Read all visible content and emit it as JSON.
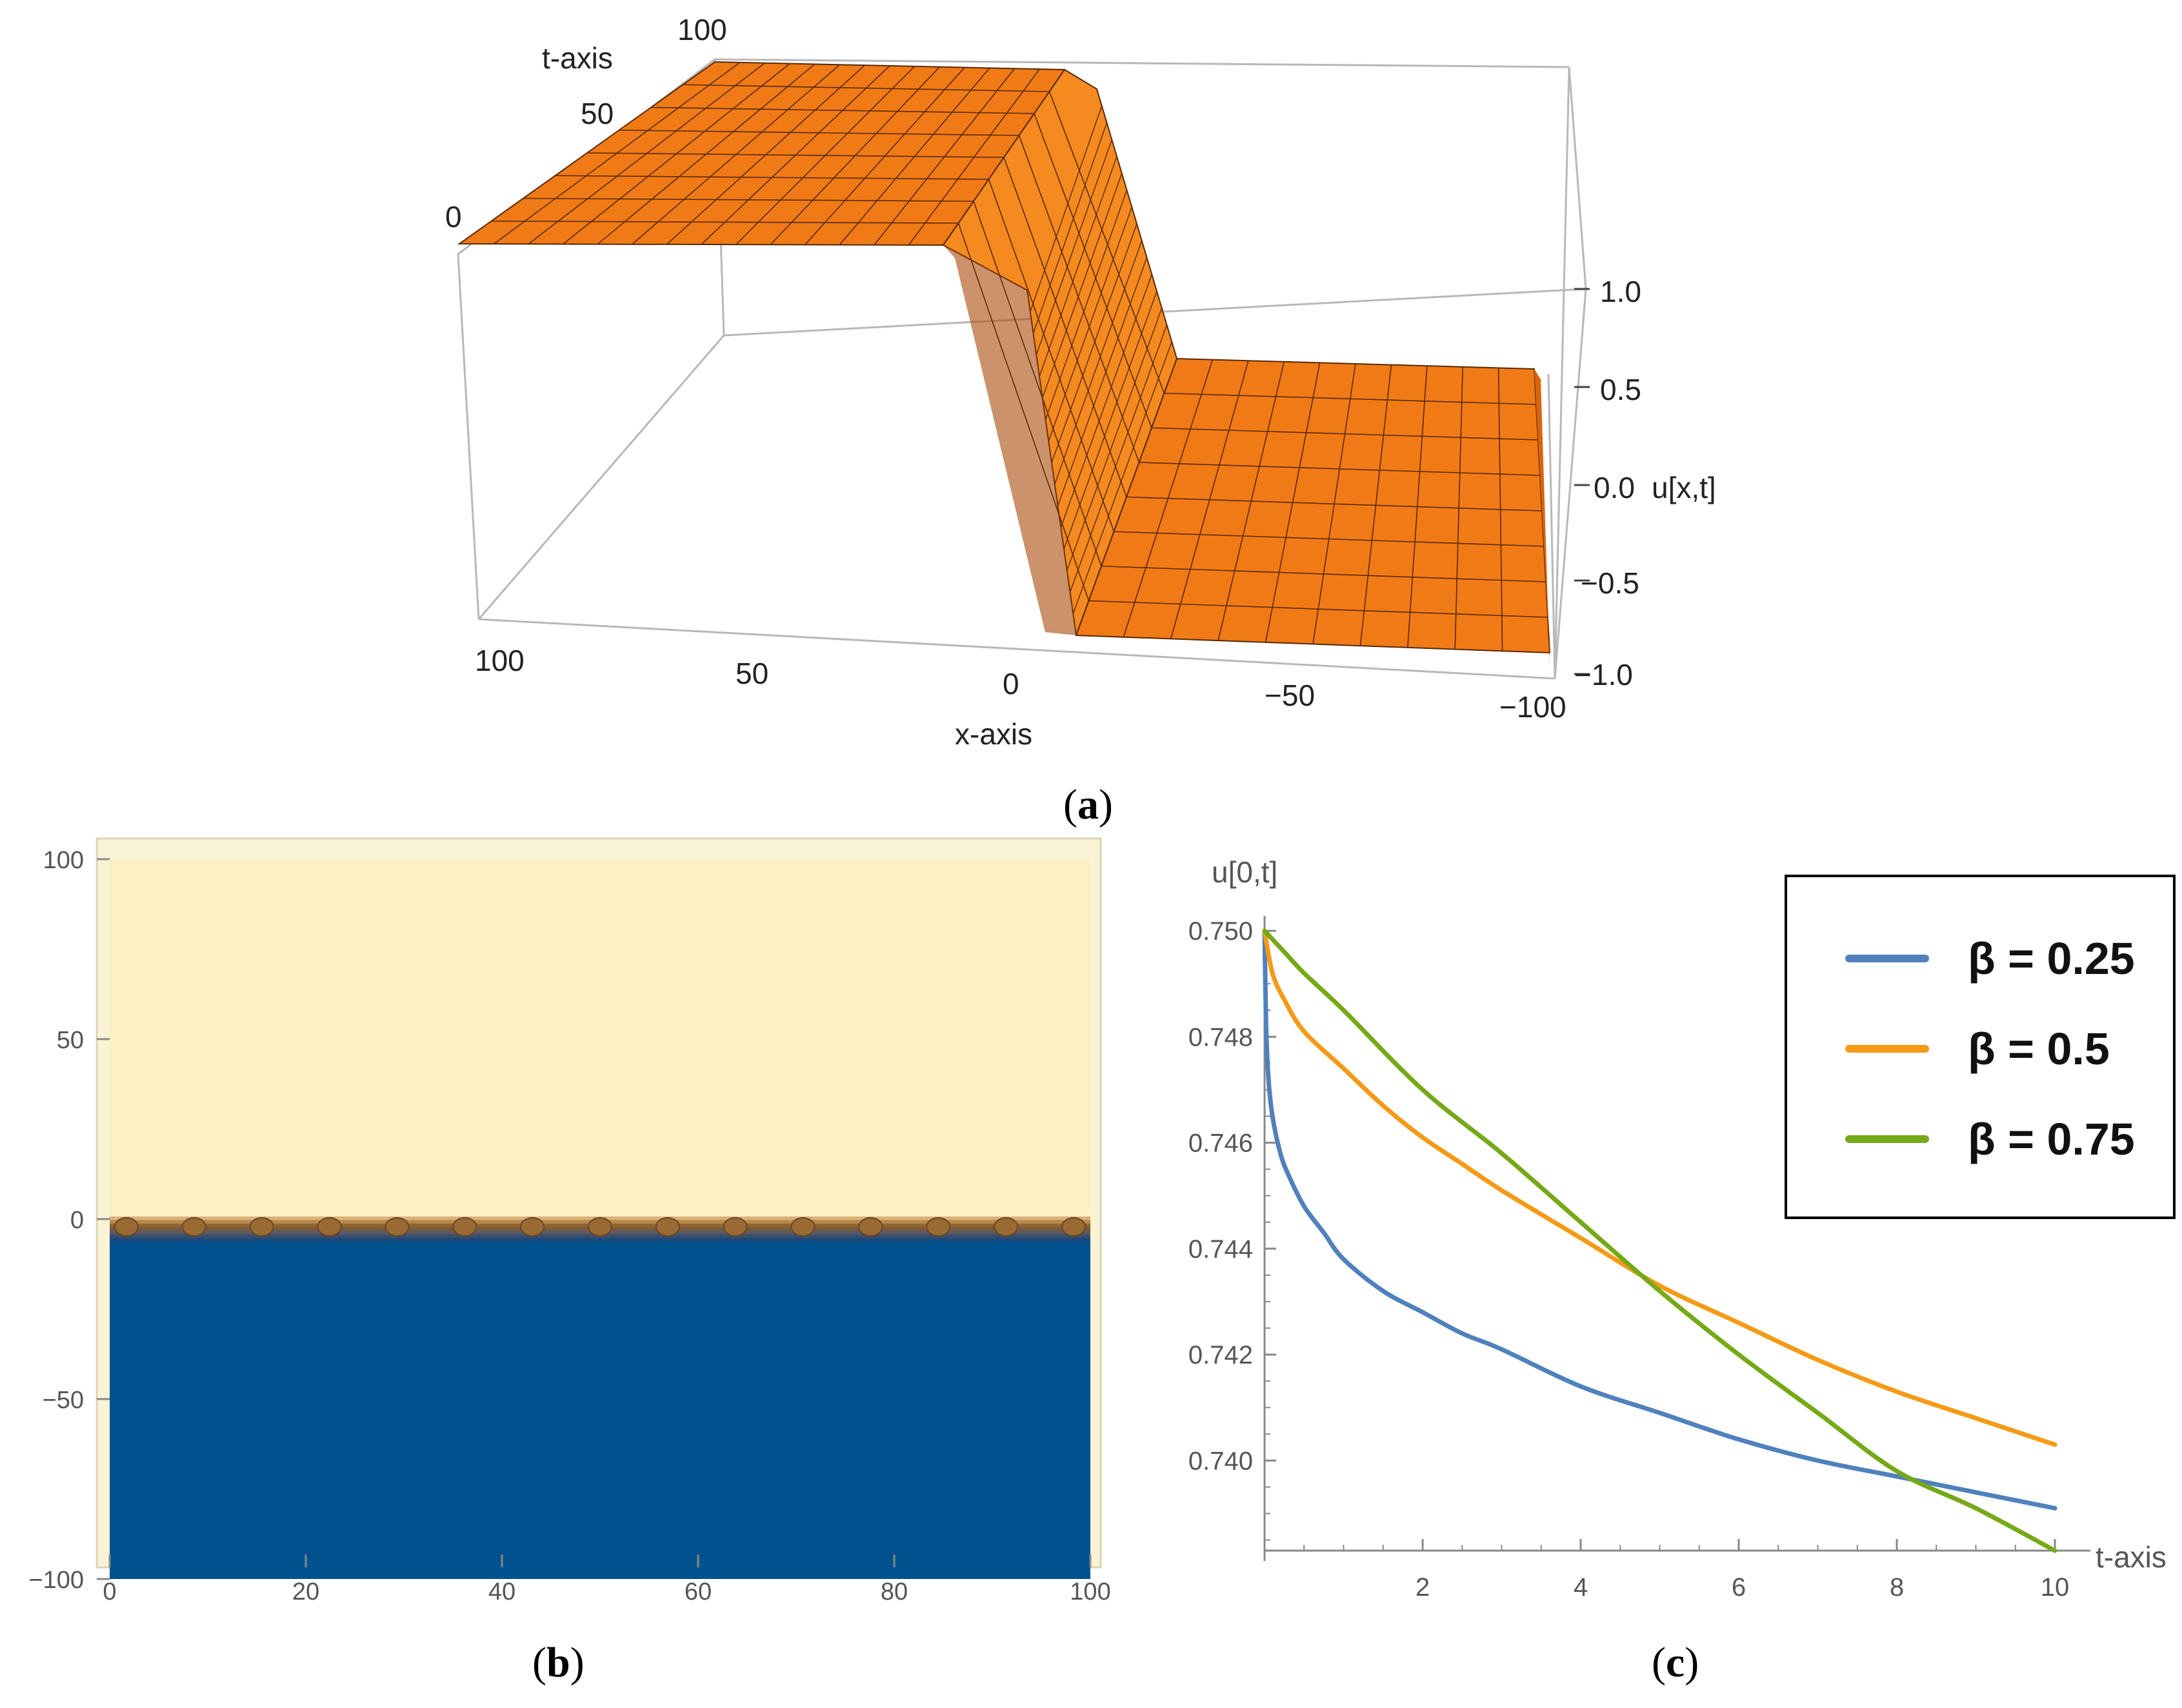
{
  "captions": {
    "a": "a",
    "b": "b",
    "c": "c"
  },
  "colors": {
    "surface": "#f07a16",
    "surface_dark": "#a84a0a",
    "contour_top": "#fcf1c4",
    "contour_bottom": "#00528e",
    "contour_edge": "#a6773d",
    "beta_025": "#4f81bd",
    "beta_05": "#f59a16",
    "beta_075": "#76a917"
  },
  "chart_data": [
    {
      "panel": "a",
      "type": "surface3d",
      "xlabel": "x-axis",
      "tlabel": "t-axis",
      "zlabel": "u[x,t]",
      "x_ticks": [
        "100",
        "50",
        "0",
        "−50",
        "−100"
      ],
      "t_ticks": [
        "0",
        "50",
        "100"
      ],
      "z_ticks": [
        "1.0",
        "0.5",
        "0.0",
        "−0.5",
        "−1.0"
      ],
      "xlim": [
        -100,
        100
      ],
      "tlim": [
        0,
        100
      ],
      "zlim": [
        -1,
        1
      ],
      "shape": "kink",
      "u_left": 0.75,
      "u_right": -0.75
    },
    {
      "panel": "b",
      "type": "heatmap",
      "x_ticks": [
        "0",
        "20",
        "40",
        "60",
        "80",
        "100"
      ],
      "y_ticks": [
        "100",
        "50",
        "0",
        "−50",
        "−100"
      ],
      "xlim": [
        0,
        100
      ],
      "ylim": [
        -100,
        100
      ],
      "boundary_y": 0
    },
    {
      "panel": "c",
      "type": "line",
      "xlabel": "t-axis",
      "ylabel": "u[0,t]",
      "xlim": [
        0,
        10
      ],
      "ylim": [
        0.7383,
        0.7505
      ],
      "x_ticks": [
        "2",
        "4",
        "6",
        "8",
        "10"
      ],
      "y_ticks": [
        "0.750",
        "0.748",
        "0.746",
        "0.744",
        "0.742",
        "0.740"
      ],
      "legend": "top-right",
      "series": [
        {
          "name": "β = 0.25",
          "color": "#4f81bd",
          "x": [
            0,
            0.02,
            0.05,
            0.1,
            0.2,
            0.3,
            0.5,
            0.75,
            1,
            1.5,
            2,
            2.5,
            3,
            4,
            5,
            6,
            7,
            8,
            9,
            10
          ],
          "y": [
            0.75,
            0.7482,
            0.7472,
            0.7465,
            0.7458,
            0.7454,
            0.7448,
            0.7443,
            0.7438,
            0.7432,
            0.7428,
            0.7424,
            0.7421,
            0.7414,
            0.7409,
            0.7404,
            0.74,
            0.7397,
            0.7394,
            0.7391
          ]
        },
        {
          "name": "β = 0.5",
          "color": "#f59a16",
          "x": [
            0,
            0.1,
            0.25,
            0.5,
            1,
            1.5,
            2,
            2.5,
            3,
            4,
            5,
            6,
            7,
            8,
            9,
            10
          ],
          "y": [
            0.75,
            0.7492,
            0.7487,
            0.7481,
            0.7474,
            0.7467,
            0.7461,
            0.7456,
            0.7451,
            0.7442,
            0.7433,
            0.7426,
            0.7419,
            0.7413,
            0.7408,
            0.7403
          ]
        },
        {
          "name": "β = 0.75",
          "color": "#76a917",
          "x": [
            0,
            0.25,
            0.5,
            1,
            2,
            3,
            4,
            5,
            6,
            7,
            8,
            9,
            10
          ],
          "y": [
            0.75,
            0.7496,
            0.7492,
            0.7485,
            0.747,
            0.7458,
            0.7445,
            0.7432,
            0.742,
            0.7409,
            0.7398,
            0.7391,
            0.7383
          ]
        }
      ]
    }
  ]
}
